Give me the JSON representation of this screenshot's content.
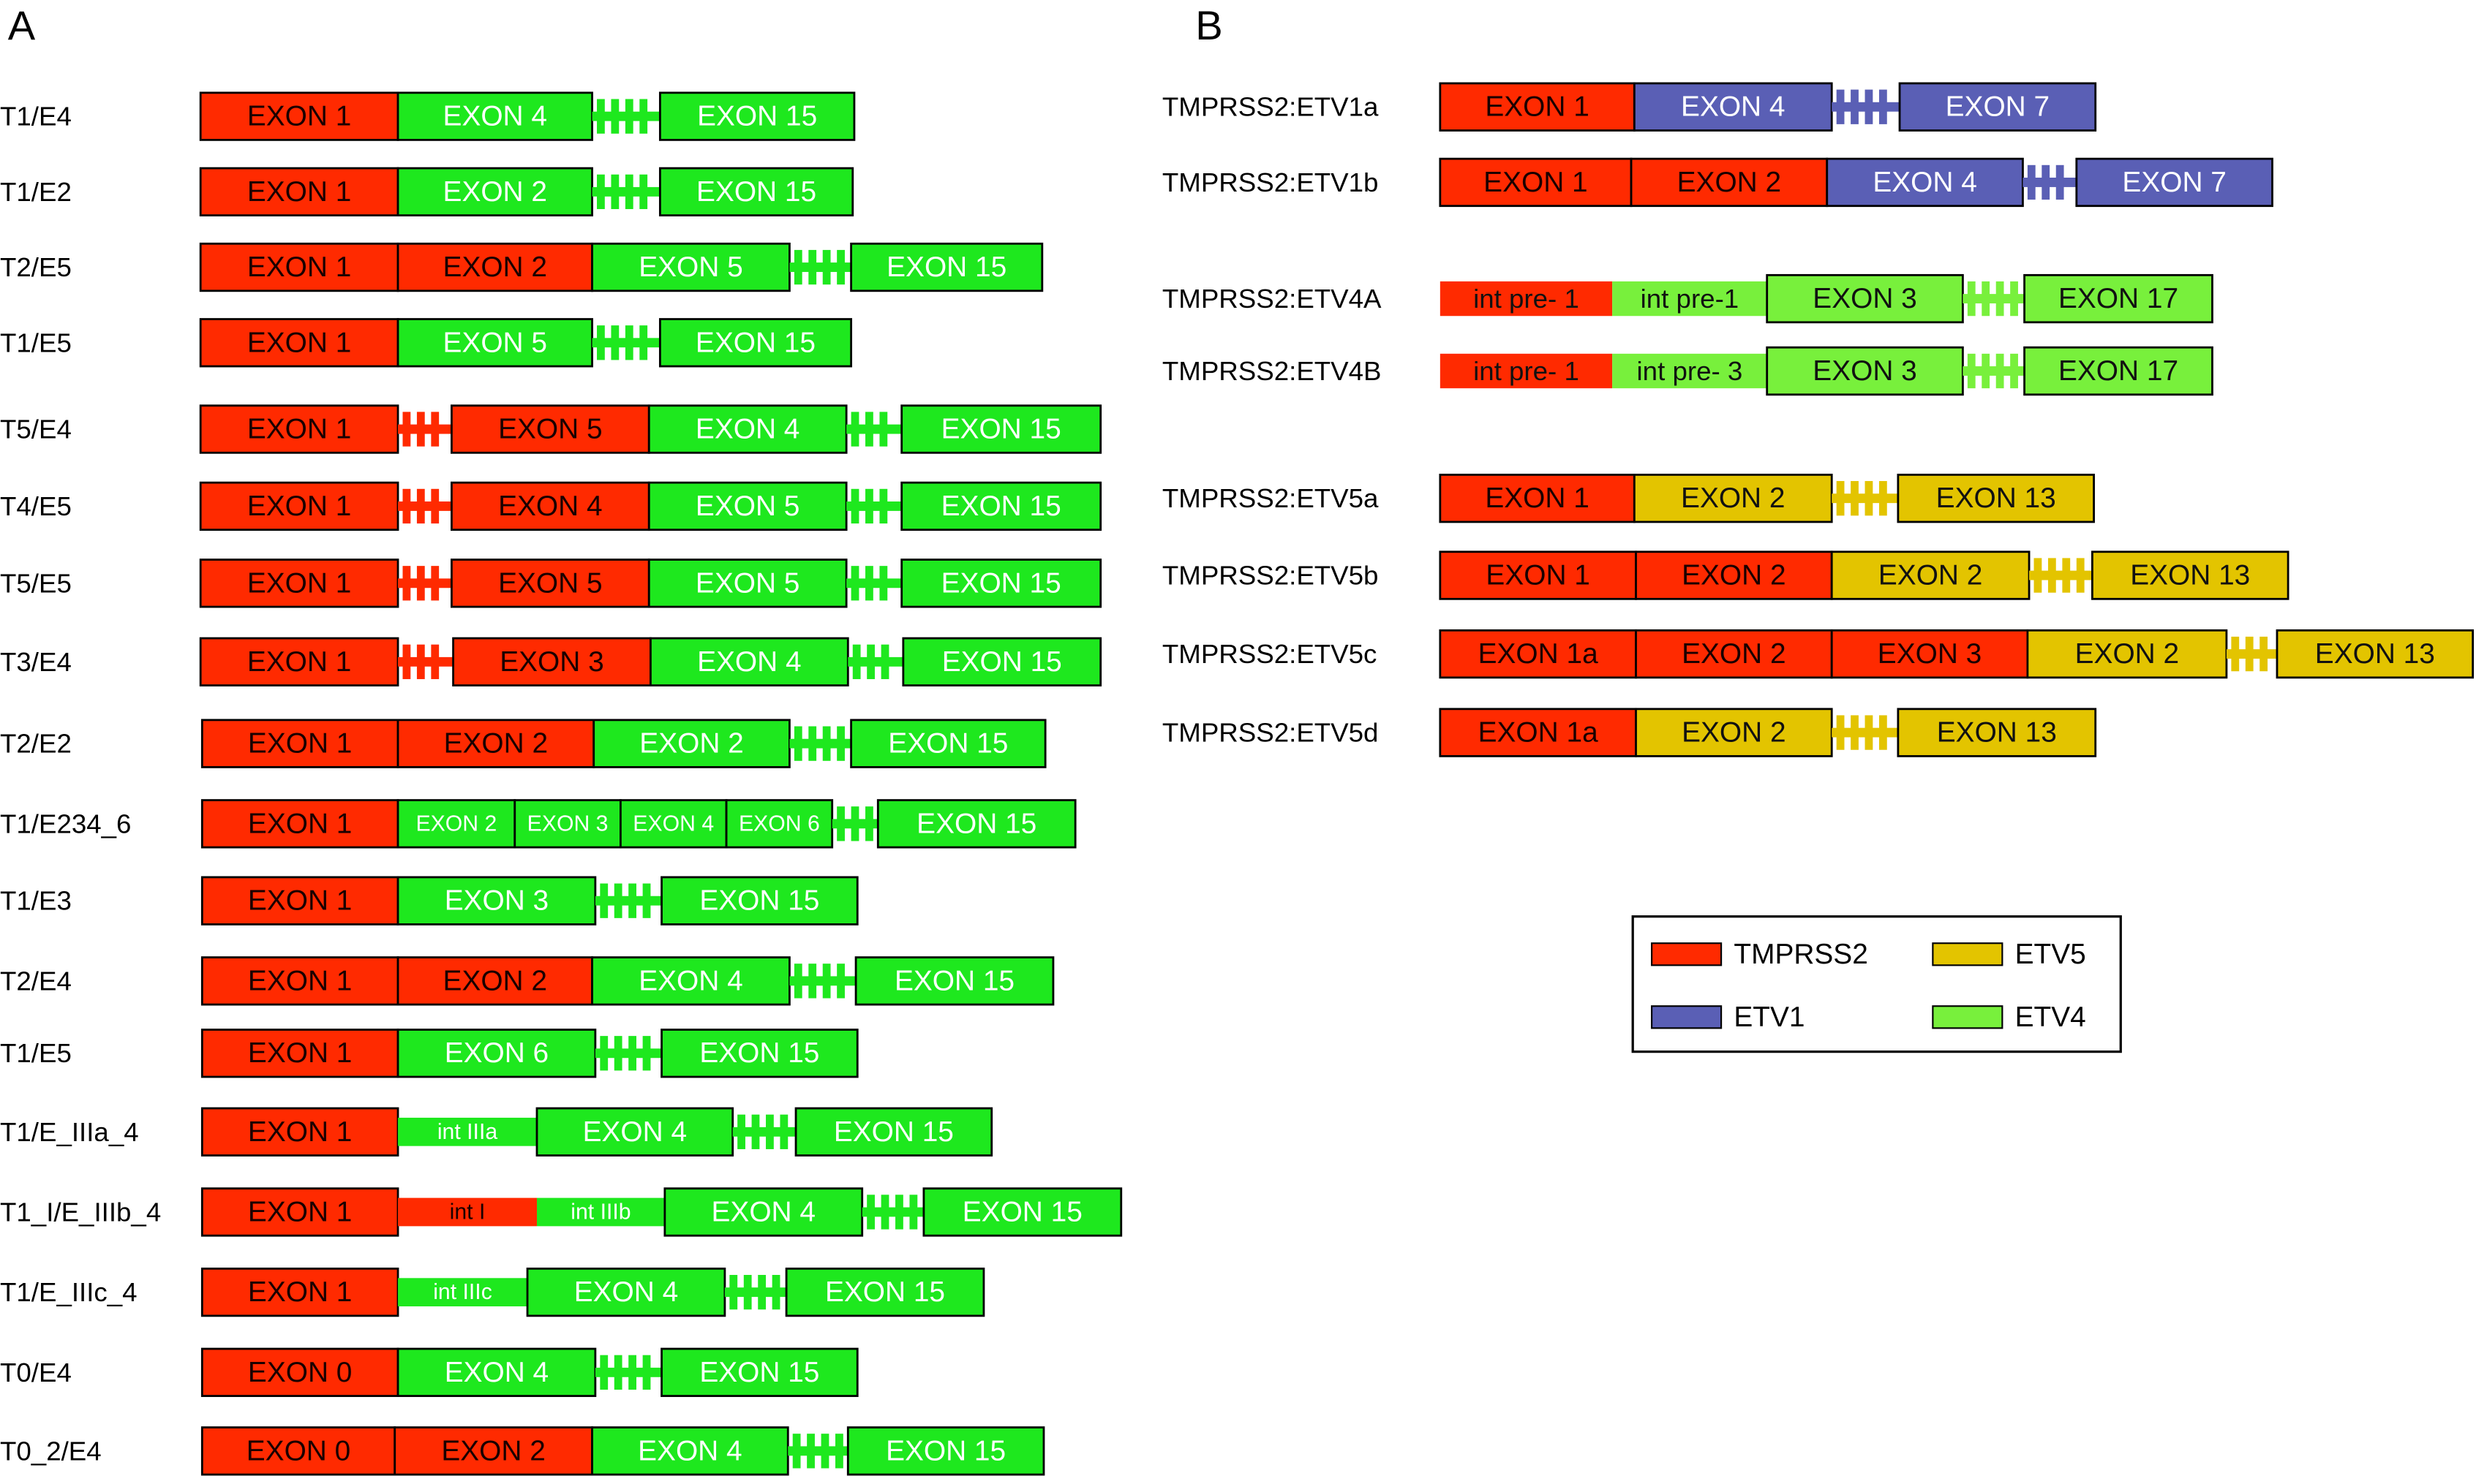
{
  "panel_a": {
    "label": "A",
    "rows": [
      {
        "name": "T1/E4",
        "segments": [
          "EXON 1",
          "EXON 4",
          "EXON 15"
        ]
      },
      {
        "name": "T1/E2",
        "segments": [
          "EXON 1",
          "EXON 2",
          "EXON 15"
        ]
      },
      {
        "name": "T2/E5",
        "segments": [
          "EXON 1",
          "EXON 2",
          "EXON 5",
          "EXON 15"
        ]
      },
      {
        "name": "T1/E5",
        "segments": [
          "EXON 1",
          "EXON 5",
          "EXON 15"
        ]
      },
      {
        "name": "T5/E4",
        "segments": [
          "EXON 1",
          "EXON 5",
          "EXON 4",
          "EXON 15"
        ]
      },
      {
        "name": "T4/E5",
        "segments": [
          "EXON 1",
          "EXON 4",
          "EXON 5",
          "EXON 15"
        ]
      },
      {
        "name": "T5/E5",
        "segments": [
          "EXON 1",
          "EXON 5",
          "EXON 5",
          "EXON 15"
        ]
      },
      {
        "name": "T3/E4",
        "segments": [
          "EXON 1",
          "EXON 3",
          "EXON 4",
          "EXON 15"
        ]
      },
      {
        "name": "T2/E2",
        "segments": [
          "EXON 1",
          "EXON 2",
          "EXON 2",
          "EXON 15"
        ]
      },
      {
        "name": "T1/E234_6",
        "segments": [
          "EXON 1",
          "EXON 2",
          "EXON 3",
          "EXON 4",
          "EXON 6",
          "EXON 15"
        ]
      },
      {
        "name": "T1/E3",
        "segments": [
          "EXON 1",
          "EXON 3",
          "EXON 15"
        ]
      },
      {
        "name": "T2/E4",
        "segments": [
          "EXON 1",
          "EXON 2",
          "EXON 4",
          "EXON 15"
        ]
      },
      {
        "name": "T1/E5",
        "segments": [
          "EXON 1",
          "EXON 6",
          "EXON 15"
        ]
      },
      {
        "name": "T1/E_IIIa_4",
        "segments": [
          "EXON 1",
          "int IIIa",
          "EXON 4",
          "EXON 15"
        ]
      },
      {
        "name": "T1_I/E_IIIb_4",
        "segments": [
          "EXON 1",
          "int I",
          "int IIIb",
          "EXON 4",
          "EXON 15"
        ]
      },
      {
        "name": "T1/E_IIIc_4",
        "segments": [
          "EXON 1",
          "int IIIc",
          "EXON 4",
          "EXON 15"
        ]
      },
      {
        "name": "T0/E4",
        "segments": [
          "EXON 0",
          "EXON 4",
          "EXON 15"
        ]
      },
      {
        "name": "T0_2/E4",
        "segments": [
          "EXON 0",
          "EXON 2",
          "EXON 4",
          "EXON 15"
        ]
      }
    ]
  },
  "panel_b": {
    "label": "B",
    "rows": [
      {
        "name": "TMPRSS2:ETV1a",
        "segments": [
          "EXON 1",
          "EXON 4",
          "EXON 7"
        ]
      },
      {
        "name": "TMPRSS2:ETV1b",
        "segments": [
          "EXON 1",
          "EXON 2",
          "EXON 4",
          "EXON 7"
        ]
      },
      {
        "name": "TMPRSS2:ETV4A",
        "segments": [
          "int pre- 1",
          "int pre-1",
          "EXON 3",
          "EXON 17"
        ]
      },
      {
        "name": "TMPRSS2:ETV4B",
        "segments": [
          "int pre- 1",
          "int pre- 3",
          "EXON 3",
          "EXON 17"
        ]
      },
      {
        "name": "TMPRSS2:ETV5a",
        "segments": [
          "EXON 1",
          "EXON 2",
          "EXON 13"
        ]
      },
      {
        "name": "TMPRSS2:ETV5b",
        "segments": [
          "EXON 1",
          "EXON 2",
          "EXON 2",
          "EXON 13"
        ]
      },
      {
        "name": "TMPRSS2:ETV5c",
        "segments": [
          "EXON 1a",
          "EXON 2",
          "EXON 3",
          "EXON 2",
          "EXON 13"
        ]
      },
      {
        "name": "TMPRSS2:ETV5d",
        "segments": [
          "EXON 1a",
          "EXON 2",
          "EXON 13"
        ]
      }
    ]
  },
  "legend": {
    "items": [
      "TMPRSS2",
      "ETV5",
      "ETV1",
      "ETV4"
    ]
  }
}
